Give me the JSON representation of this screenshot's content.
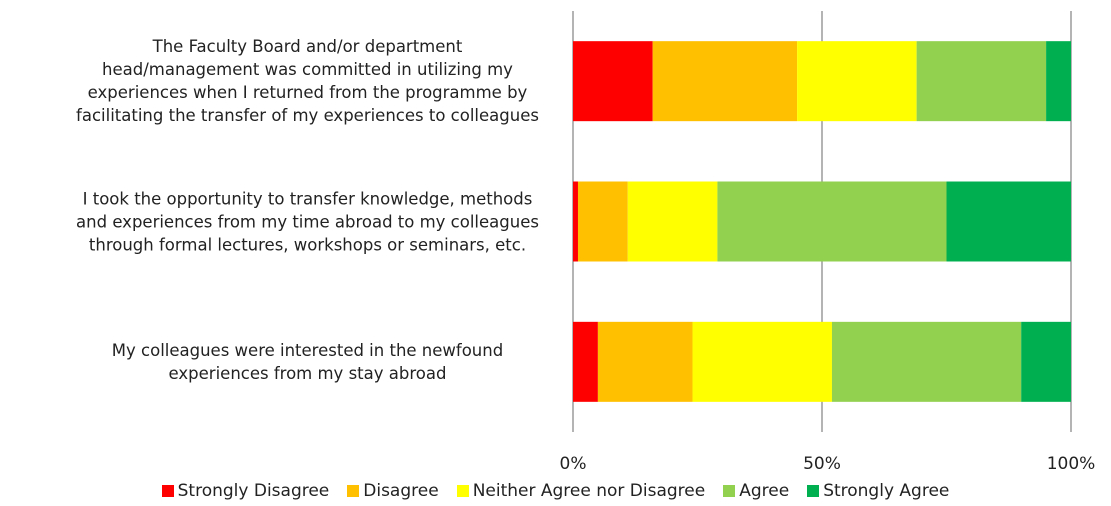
{
  "chart_data": {
    "type": "stacked-bar-horizontal",
    "categories": [
      "The Faculty Board and/or department\nhead/management was committed in utilizing my\nexperiences when I returned from the programme by\nfacilitating the transfer of my experiences to colleagues",
      "I  took the opportunity to transfer knowledge, methods\nand experiences from my time abroad to my colleagues\nthrough formal lectures, workshops or seminars, etc.",
      "My colleagues were interested in the newfound\nexperiences from my stay abroad"
    ],
    "series": [
      {
        "name": "Strongly Disagree",
        "color": "#ff0000",
        "values": [
          16,
          1,
          5
        ]
      },
      {
        "name": "Disagree",
        "color": "#ffc000",
        "values": [
          29,
          10,
          19
        ]
      },
      {
        "name": "Neither Agree nor Disagree",
        "color": "#ffff00",
        "values": [
          24,
          18,
          28
        ]
      },
      {
        "name": "Agree",
        "color": "#92d050",
        "values": [
          26,
          46,
          38
        ]
      },
      {
        "name": "Strongly Agree",
        "color": "#00b050",
        "values": [
          5,
          25,
          10
        ]
      }
    ],
    "xlim": [
      0,
      100
    ],
    "xticks": [
      {
        "value": 0,
        "label": "0%"
      },
      {
        "value": 50,
        "label": "50%"
      },
      {
        "value": 100,
        "label": "100%"
      }
    ],
    "grid": true,
    "legend": "bottom"
  }
}
